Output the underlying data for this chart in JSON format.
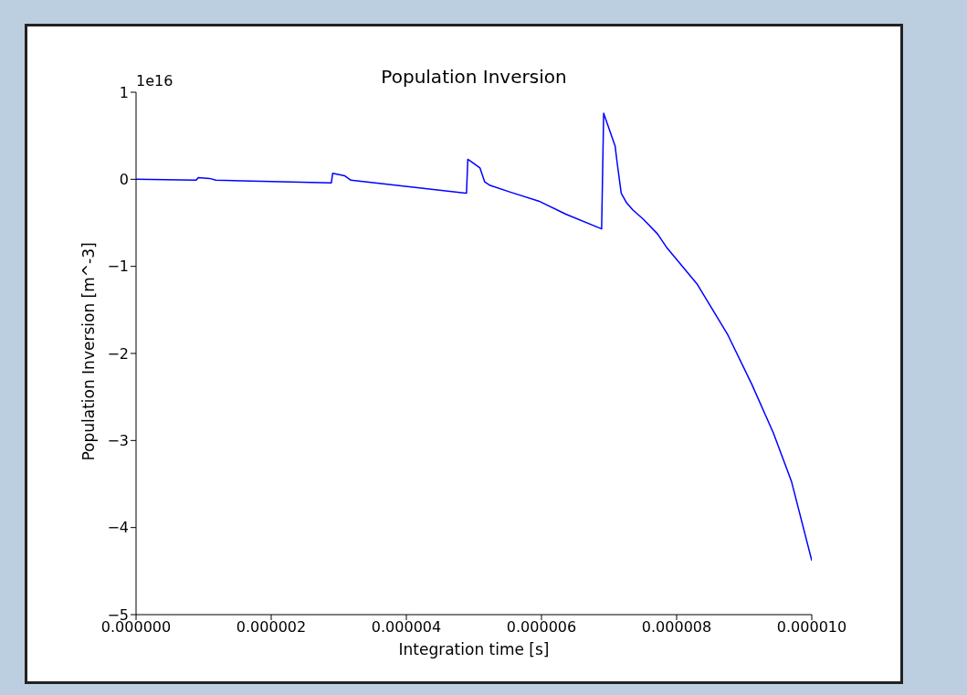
{
  "chart_data": {
    "type": "line",
    "title": "Population Inversion",
    "xlabel": "Integration time [s]",
    "ylabel": "Population Inversion [m^-3]",
    "annotations": [
      "1e16"
    ],
    "x": [
      0,
      8.9e-07,
      9.2e-07,
      1.09e-06,
      1.18e-06,
      2.89e-06,
      2.91e-06,
      3.09e-06,
      3.18e-06,
      4.89e-06,
      4.91e-06,
      5.09e-06,
      5.16e-06,
      5.24e-06,
      5.55e-06,
      5.96e-06,
      6.36e-06,
      6.89e-06,
      6.92e-06,
      7.09e-06,
      7.12e-06,
      7.18e-06,
      7.26e-06,
      7.35e-06,
      7.51e-06,
      7.72e-06,
      7.85e-06,
      8.3e-06,
      8.76e-06,
      9.11e-06,
      9.43e-06,
      9.7e-06,
      1e-05
    ],
    "series": [
      {
        "color": "#0000ff",
        "values": [
          0,
          -0.01,
          0.02,
          0.01,
          -0.01,
          -0.04,
          0.07,
          0.04,
          -0.01,
          -0.16,
          0.23,
          0.13,
          -0.03,
          -0.07,
          -0.15,
          -0.25,
          -0.4,
          -0.57,
          0.76,
          0.38,
          0.19,
          -0.16,
          -0.27,
          -0.35,
          -0.46,
          -0.63,
          -0.78,
          -1.2,
          -1.79,
          -2.35,
          -2.91,
          -3.47,
          -4.38
        ]
      }
    ],
    "xlim": [
      0,
      1e-05
    ],
    "ylim": [
      -5,
      1
    ],
    "xticks": [
      {
        "value": 0,
        "label": "0.000000"
      },
      {
        "value": 2e-06,
        "label": "0.000002"
      },
      {
        "value": 4e-06,
        "label": "0.000004"
      },
      {
        "value": 6e-06,
        "label": "0.000006"
      },
      {
        "value": 8e-06,
        "label": "0.000008"
      },
      {
        "value": 1e-05,
        "label": "0.000010"
      }
    ],
    "yticks": [
      {
        "value": -5,
        "label": "−5"
      },
      {
        "value": -4,
        "label": "−4"
      },
      {
        "value": -3,
        "label": "−3"
      },
      {
        "value": -2,
        "label": "−2"
      },
      {
        "value": -1,
        "label": "−1"
      },
      0,
      1
    ],
    "line_style": "solid"
  }
}
